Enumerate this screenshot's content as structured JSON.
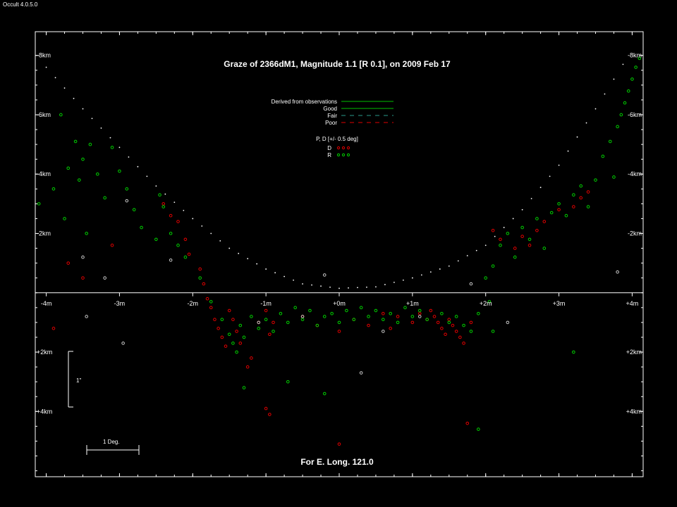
{
  "app_version": "Occult 4.0.5.0",
  "chart_data": {
    "type": "scatter",
    "title": "Graze of  2366dM1,  Magnitude 1.1 [R 0.1],  on 2009 Feb 17",
    "footer": "For E. Long. 121.0",
    "xlim": [
      -4.15,
      4.15
    ],
    "ylim": [
      -8.8,
      6.2
    ],
    "grid": false,
    "x_ticks": [
      {
        "v": -4,
        "label": "-4m"
      },
      {
        "v": -3,
        "label": "-3m"
      },
      {
        "v": -2,
        "label": "-2m"
      },
      {
        "v": -1,
        "label": "-1m"
      },
      {
        "v": 0,
        "label": "+0m"
      },
      {
        "v": 1,
        "label": "+1m"
      },
      {
        "v": 2,
        "label": "+2m"
      },
      {
        "v": 3,
        "label": "+3m"
      },
      {
        "v": 4,
        "label": "+4m"
      }
    ],
    "y_ticks": [
      {
        "v": -8,
        "label": "-8km"
      },
      {
        "v": -6,
        "label": "-6km"
      },
      {
        "v": -4,
        "label": "-4km"
      },
      {
        "v": -2,
        "label": "-2km"
      },
      {
        "v": 2,
        "label": "+2km"
      },
      {
        "v": 4,
        "label": "+4km"
      }
    ],
    "legend": {
      "placement": "top-center",
      "lines": [
        {
          "label": "Derived from observations",
          "color": "#00c000",
          "dash": "solid"
        },
        {
          "label": "Good",
          "color": "#00c000",
          "dash": "solid"
        },
        {
          "label": "Fair",
          "color": "#2a9a8a",
          "dash": "dashed"
        },
        {
          "label": "Poor",
          "color": "#e00000",
          "dash": "dashed"
        }
      ],
      "pd_title": "P, D [+/- 0.5 deg]",
      "pd_entries": [
        {
          "label": "D",
          "color": "#e00000"
        },
        {
          "label": "R",
          "color": "#00d000"
        }
      ]
    },
    "scale_bars": {
      "arcsec_label": "1\"",
      "deg_label": "1 Deg."
    },
    "limb_profile": {
      "color": "#ffffff",
      "x": [
        -4.0,
        -3.5,
        -3.0,
        -2.5,
        -2.0,
        -1.5,
        -1.0,
        -0.5,
        0.0,
        0.5,
        1.0,
        1.5,
        2.0,
        2.5,
        3.0,
        3.5,
        4.0
      ],
      "y": [
        -7.6,
        -6.2,
        -4.9,
        -3.6,
        -2.5,
        -1.5,
        -0.8,
        -0.3,
        -0.15,
        -0.2,
        -0.5,
        -0.9,
        -1.6,
        -2.8,
        -4.3,
        -6.2,
        -8.2
      ]
    },
    "series": [
      {
        "name": "D",
        "color": "#e00000",
        "x": [
          -3.9,
          -3.7,
          -3.5,
          -3.1,
          -2.4,
          -2.3,
          -2.2,
          -2.1,
          -2.05,
          -1.9,
          -1.85,
          -1.8,
          -1.75,
          -1.7,
          -1.65,
          -1.6,
          -1.55,
          -1.5,
          -1.45,
          -1.4,
          -1.35,
          -1.2,
          -1.1,
          -1.0,
          -0.95,
          -0.9,
          -0.5,
          -0.3,
          0.0,
          0.2,
          0.4,
          0.6,
          0.7,
          0.8,
          1.0,
          1.1,
          1.2,
          1.25,
          1.3,
          1.35,
          1.4,
          1.45,
          1.5,
          1.55,
          1.6,
          1.65,
          1.7,
          1.8,
          2.1,
          2.2,
          2.4,
          2.5,
          2.6,
          2.7,
          2.8,
          3.0,
          3.2,
          3.3,
          3.4,
          -1.0,
          -0.95,
          1.75,
          0.0,
          -1.25
        ],
        "y": [
          1.2,
          -1.0,
          -0.5,
          -1.6,
          -3.0,
          -2.6,
          -2.4,
          -1.8,
          -1.3,
          -0.8,
          -0.3,
          0.2,
          0.5,
          0.9,
          1.2,
          1.5,
          1.8,
          0.6,
          0.9,
          1.3,
          1.7,
          2.2,
          1.0,
          0.6,
          1.4,
          1.0,
          0.8,
          1.1,
          1.3,
          0.9,
          1.1,
          0.7,
          1.2,
          0.8,
          1.0,
          0.7,
          0.9,
          0.6,
          0.8,
          1.0,
          1.2,
          1.4,
          0.9,
          1.1,
          1.3,
          1.5,
          1.7,
          1.0,
          -2.1,
          -1.8,
          -1.5,
          -1.9,
          -1.6,
          -2.1,
          -2.4,
          -2.8,
          -2.9,
          -3.2,
          -3.4,
          3.9,
          4.1,
          4.4,
          5.1,
          2.5
        ]
      },
      {
        "name": "R",
        "color": "#00d000",
        "x": [
          -4.1,
          -3.9,
          -3.8,
          -3.75,
          -3.7,
          -3.6,
          -3.55,
          -3.5,
          -3.45,
          -3.4,
          -3.3,
          -3.2,
          -3.1,
          -3.0,
          -2.9,
          -2.8,
          -2.7,
          -2.5,
          -2.45,
          -2.4,
          -2.3,
          -2.2,
          -2.1,
          -1.9,
          -1.75,
          -1.6,
          -1.5,
          -1.45,
          -1.4,
          -1.35,
          -1.3,
          -1.2,
          -1.1,
          -1.0,
          -0.9,
          -0.8,
          -0.7,
          -0.6,
          -0.5,
          -0.4,
          -0.3,
          -0.2,
          -0.1,
          0.0,
          0.1,
          0.2,
          0.3,
          0.4,
          0.5,
          0.6,
          0.7,
          0.8,
          0.9,
          1.0,
          1.1,
          1.2,
          1.4,
          1.5,
          1.6,
          1.7,
          1.8,
          1.9,
          2.0,
          2.05,
          2.1,
          2.2,
          2.3,
          2.4,
          2.5,
          2.6,
          2.7,
          2.8,
          2.9,
          3.0,
          3.1,
          3.2,
          3.3,
          3.4,
          3.5,
          3.6,
          3.7,
          3.75,
          3.8,
          3.85,
          3.9,
          3.95,
          4.0,
          4.05,
          4.1,
          -1.3,
          -0.7,
          -0.2,
          2.1,
          3.2,
          1.9
        ],
        "y": [
          -3.0,
          -3.5,
          -6.0,
          -2.5,
          -4.2,
          -5.1,
          -3.8,
          -4.5,
          -2.0,
          -5.0,
          -4.0,
          -3.2,
          -4.9,
          -4.1,
          -3.5,
          -2.8,
          -2.2,
          -1.8,
          -3.3,
          -2.9,
          -2.0,
          -1.6,
          -1.2,
          -0.5,
          0.3,
          0.9,
          1.4,
          1.7,
          2.0,
          1.1,
          1.5,
          0.8,
          1.2,
          0.9,
          1.3,
          0.7,
          1.0,
          0.5,
          0.9,
          0.6,
          1.1,
          0.8,
          0.7,
          1.0,
          0.6,
          0.9,
          0.5,
          0.8,
          0.6,
          0.9,
          0.7,
          1.0,
          0.5,
          0.8,
          0.6,
          0.9,
          0.7,
          1.0,
          0.8,
          1.1,
          1.3,
          0.7,
          -0.5,
          0.3,
          -0.9,
          -1.6,
          -2.0,
          -1.2,
          -2.2,
          -1.8,
          -2.5,
          -1.5,
          -2.7,
          -3.0,
          -2.6,
          -3.3,
          -3.6,
          -2.9,
          -3.8,
          -4.6,
          -5.1,
          -3.9,
          -5.6,
          -6.0,
          -6.4,
          -6.8,
          -7.2,
          -7.6,
          -7.9,
          3.2,
          3.0,
          3.4,
          1.3,
          2.0,
          4.6
        ]
      },
      {
        "name": "",
        "color": "#c8c8c8",
        "x": [
          -3.5,
          -3.2,
          -2.9,
          -2.3,
          -1.1,
          -0.5,
          -0.2,
          0.6,
          1.1,
          1.8,
          2.3,
          3.8,
          0.3,
          -3.45,
          -2.95
        ],
        "y": [
          -1.2,
          -0.5,
          -3.1,
          -1.1,
          1.0,
          0.8,
          -0.6,
          1.3,
          0.8,
          -0.3,
          1.0,
          -0.7,
          2.7,
          0.8,
          1.7
        ]
      }
    ]
  }
}
